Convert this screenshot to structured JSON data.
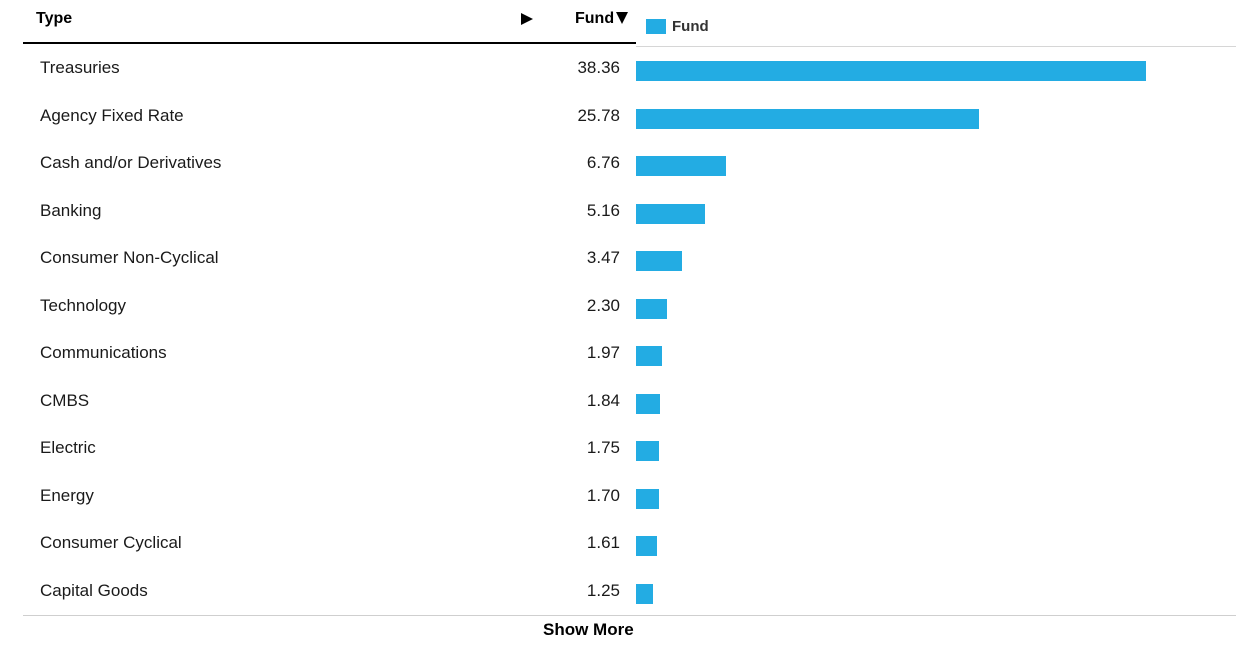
{
  "header": {
    "type_label": "Type",
    "fund_label": "Fund"
  },
  "legend": {
    "label": "Fund",
    "color": "#23ace3"
  },
  "chart_data": {
    "type": "bar",
    "orientation": "horizontal",
    "categories": [
      "Treasuries",
      "Agency Fixed Rate",
      "Cash and/or Derivatives",
      "Banking",
      "Consumer Non-Cyclical",
      "Technology",
      "Communications",
      "CMBS",
      "Electric",
      "Energy",
      "Consumer Cyclical",
      "Capital Goods"
    ],
    "series": [
      {
        "name": "Fund",
        "values": [
          38.36,
          25.78,
          6.76,
          5.16,
          3.47,
          2.3,
          1.97,
          1.84,
          1.75,
          1.7,
          1.61,
          1.25
        ],
        "labels": [
          "38.36",
          "25.78",
          "6.76",
          "5.16",
          "3.47",
          "2.30",
          "1.97",
          "1.84",
          "1.75",
          "1.70",
          "1.61",
          "1.25"
        ],
        "color": "#23ace3"
      }
    ],
    "xlim": [
      0,
      45
    ],
    "grid": false,
    "legend_position": "top-left"
  },
  "footer": {
    "show_more_label": "Show More"
  }
}
